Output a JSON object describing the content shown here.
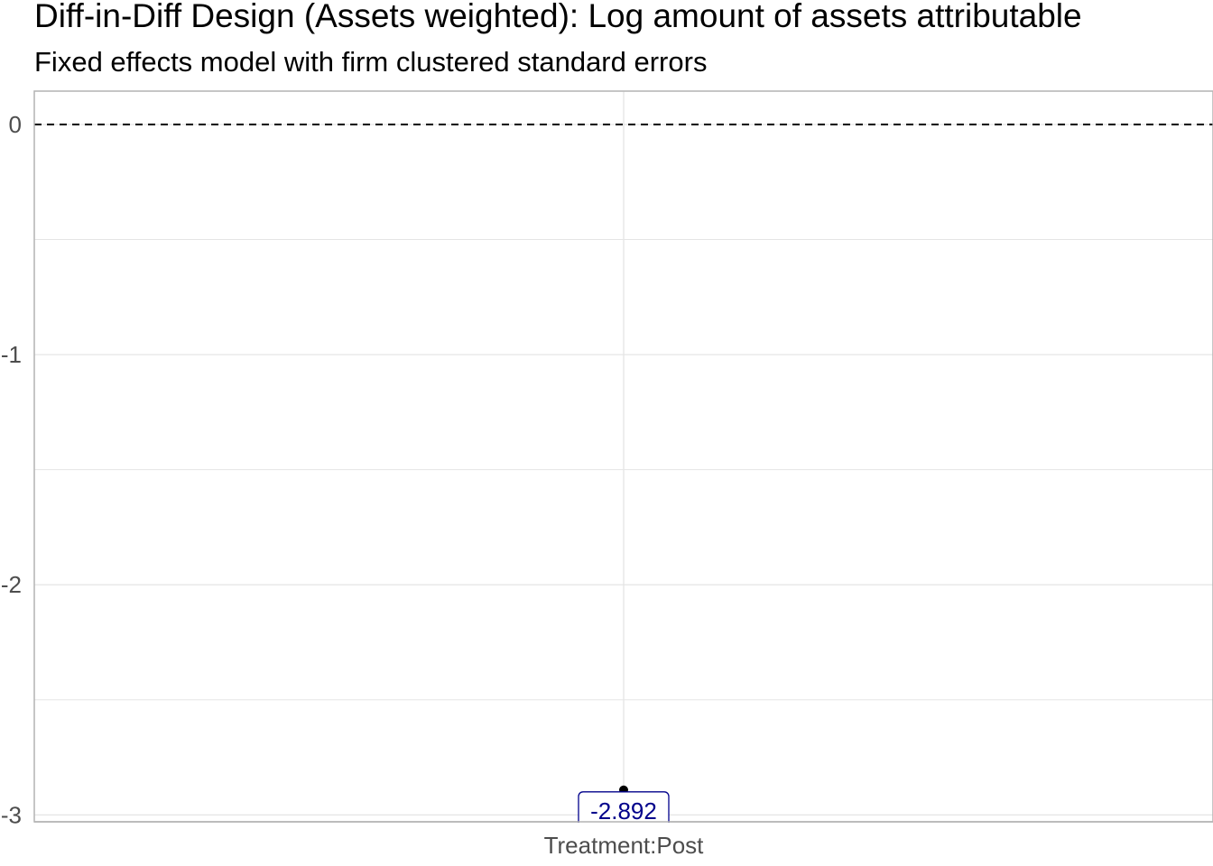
{
  "chart_data": {
    "type": "scatter",
    "title": "Diff-in-Diff Design (Assets weighted): Log amount of assets attributable",
    "subtitle": "Fixed effects model with firm clustered standard errors",
    "xlabel": "",
    "ylabel": "",
    "categories": [
      "Treatment:Post"
    ],
    "series": [
      {
        "values": [
          -2.892
        ],
        "labels": [
          "-2.892"
        ]
      }
    ],
    "ylim": [
      -3.03,
      0.145
    ],
    "yticks": [
      0,
      -1,
      -2,
      -3
    ],
    "ytick_labels": [
      "0",
      "-1",
      "-2",
      "-3"
    ],
    "reference_line": {
      "y": 0,
      "style": "dashed"
    },
    "grid": true,
    "legend": "none",
    "colors": {
      "point": "#000000",
      "label_text": "#00008b",
      "grid": "#e5e5e5",
      "panel_border": "#b3b3b3",
      "reference_line": "#000000"
    }
  }
}
